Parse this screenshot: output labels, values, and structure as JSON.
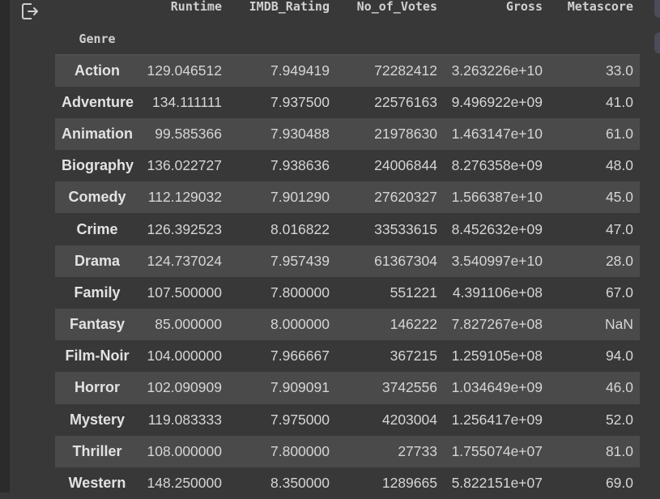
{
  "columns": [
    "Runtime",
    "IMDB_Rating",
    "No_of_Votes",
    "Gross",
    "Metascore"
  ],
  "index_name": "Genre",
  "rows": [
    {
      "genre": "Action",
      "values": [
        "129.046512",
        "7.949419",
        "72282412",
        "3.263226e+10",
        "33.0"
      ]
    },
    {
      "genre": "Adventure",
      "values": [
        "134.111111",
        "7.937500",
        "22576163",
        "9.496922e+09",
        "41.0"
      ]
    },
    {
      "genre": "Animation",
      "values": [
        "99.585366",
        "7.930488",
        "21978630",
        "1.463147e+10",
        "61.0"
      ]
    },
    {
      "genre": "Biography",
      "values": [
        "136.022727",
        "7.938636",
        "24006844",
        "8.276358e+09",
        "48.0"
      ]
    },
    {
      "genre": "Comedy",
      "values": [
        "112.129032",
        "7.901290",
        "27620327",
        "1.566387e+10",
        "45.0"
      ]
    },
    {
      "genre": "Crime",
      "values": [
        "126.392523",
        "8.016822",
        "33533615",
        "8.452632e+09",
        "47.0"
      ]
    },
    {
      "genre": "Drama",
      "values": [
        "124.737024",
        "7.957439",
        "61367304",
        "3.540997e+10",
        "28.0"
      ]
    },
    {
      "genre": "Family",
      "values": [
        "107.500000",
        "7.800000",
        "551221",
        "4.391106e+08",
        "67.0"
      ]
    },
    {
      "genre": "Fantasy",
      "values": [
        "85.000000",
        "8.000000",
        "146222",
        "7.827267e+08",
        "NaN"
      ]
    },
    {
      "genre": "Film-Noir",
      "values": [
        "104.000000",
        "7.966667",
        "367215",
        "1.259105e+08",
        "94.0"
      ]
    },
    {
      "genre": "Horror",
      "values": [
        "102.090909",
        "7.909091",
        "3742556",
        "1.034649e+09",
        "46.0"
      ]
    },
    {
      "genre": "Mystery",
      "values": [
        "119.083333",
        "7.975000",
        "4203004",
        "1.256417e+09",
        "52.0"
      ]
    },
    {
      "genre": "Thriller",
      "values": [
        "108.000000",
        "7.800000",
        "27733",
        "1.755074e+07",
        "81.0"
      ]
    },
    {
      "genre": "Western",
      "values": [
        "148.250000",
        "8.350000",
        "1289665",
        "5.822151e+07",
        "69.0"
      ]
    }
  ],
  "icons": {
    "export": "open-in-new-tab-icon"
  },
  "colors": {
    "background": "#383838",
    "row_stripe": "#4a4a4a",
    "text": "#d5d5d5"
  }
}
